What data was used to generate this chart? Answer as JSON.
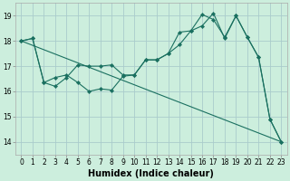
{
  "xlabel": "Humidex (Indice chaleur)",
  "background_color": "#cceedd",
  "grid_color": "#aacccc",
  "line_color": "#1a7060",
  "xlim": [
    -0.5,
    23.5
  ],
  "ylim": [
    13.5,
    19.5
  ],
  "yticks": [
    14,
    15,
    16,
    17,
    18,
    19
  ],
  "xticks": [
    0,
    1,
    2,
    3,
    4,
    5,
    6,
    7,
    8,
    9,
    10,
    11,
    12,
    13,
    14,
    15,
    16,
    17,
    18,
    19,
    20,
    21,
    22,
    23
  ],
  "line1_x": [
    0,
    1,
    2,
    3,
    4,
    5,
    6,
    7,
    8,
    9,
    10,
    11,
    12,
    13,
    14,
    15,
    16,
    17,
    18,
    19,
    20,
    21,
    22,
    23
  ],
  "line1_y": [
    18.0,
    18.1,
    16.35,
    16.55,
    16.65,
    16.35,
    16.0,
    16.1,
    16.05,
    16.6,
    16.65,
    17.25,
    17.25,
    17.5,
    18.35,
    18.4,
    18.6,
    19.1,
    18.1,
    19.0,
    18.15,
    17.35,
    14.9,
    14.0
  ],
  "line2_x": [
    0,
    1,
    2,
    3,
    4,
    5,
    6,
    7,
    8,
    9,
    10,
    11,
    12,
    13,
    14,
    15,
    16,
    17,
    18,
    19,
    20,
    21,
    22,
    23
  ],
  "line2_y": [
    18.0,
    18.1,
    16.35,
    16.2,
    16.55,
    17.05,
    17.0,
    17.0,
    17.05,
    16.65,
    16.65,
    17.25,
    17.25,
    17.5,
    17.85,
    18.4,
    19.05,
    18.85,
    18.15,
    19.0,
    18.15,
    17.35,
    14.9,
    14.0
  ],
  "line3_x": [
    0,
    23
  ],
  "line3_y": [
    18.0,
    14.0
  ],
  "xlabel_fontsize": 7,
  "tick_fontsize": 5.5
}
